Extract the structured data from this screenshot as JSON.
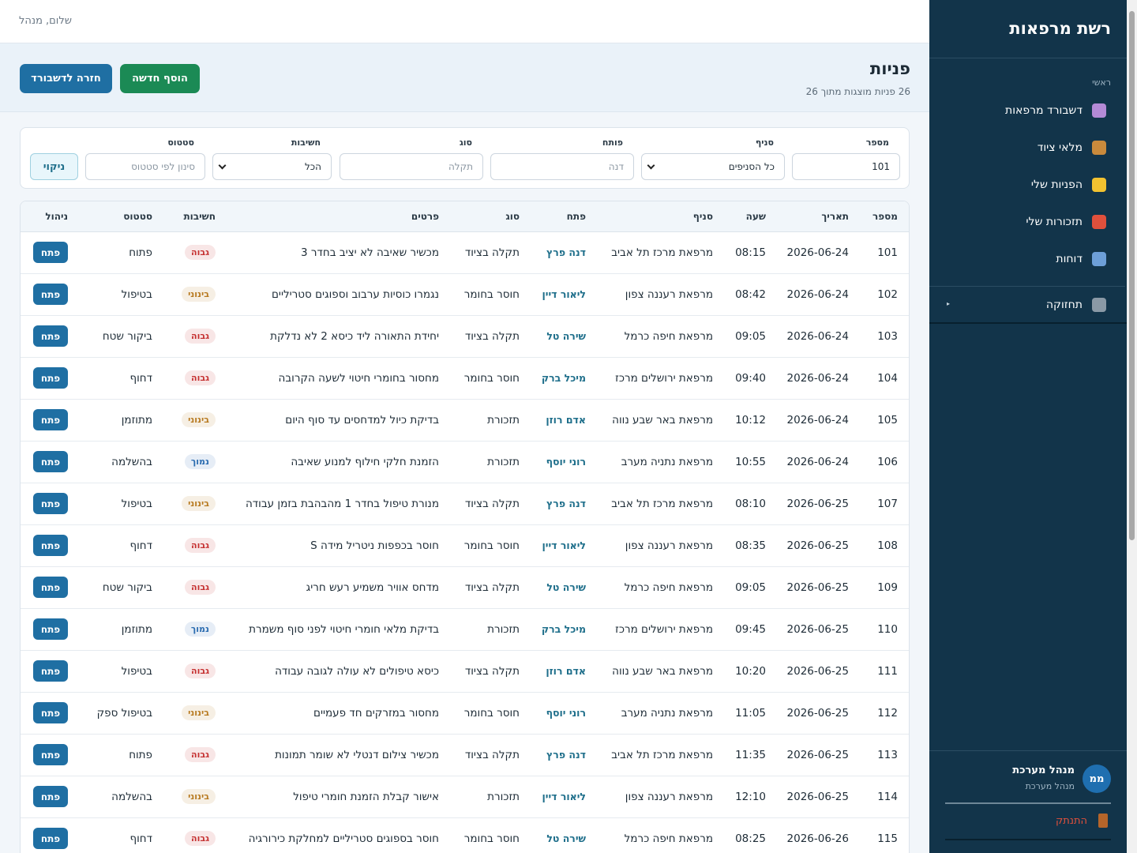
{
  "sidebar": {
    "title": "רשת מרפאות",
    "section": "ראשי",
    "nav": [
      "דשבורד מרפאות",
      "מלאי ציוד",
      "הפניות שלי",
      "תזכורות שלי",
      "דוחות"
    ],
    "nav_colors": [
      "#b48ad6",
      "#c98a3c",
      "#f2c230",
      "#e0503c",
      "#6d9fd8"
    ],
    "maintenance": "תחזוקה",
    "user": {
      "initials": "ממ",
      "name": "מנהל מערכת",
      "role": "מנהל מערכת"
    },
    "logout": "התנתק"
  },
  "topbar": {
    "greeting": "שלום, מנהל"
  },
  "header": {
    "title": "פניות",
    "subtitle": "26 פניות מוצגות מתוך 26",
    "buttons": [
      "הוסף חדשה",
      "חזרה לדשבורד"
    ]
  },
  "filters": {
    "fields": [
      {
        "label": "מספר",
        "value": "101"
      },
      {
        "label": "סניף",
        "value": "כל הסניפים",
        "kind": "select"
      },
      {
        "label": "פותח",
        "placeholder": "דנה"
      },
      {
        "label": "סוג",
        "placeholder": "תקלה"
      },
      {
        "label": "חשיבות",
        "value": "הכל",
        "kind": "select"
      },
      {
        "label": "סטטוס",
        "placeholder": "סינון לפי סטטוס"
      }
    ],
    "clear": "ניקוי"
  },
  "table": {
    "columns": [
      "מספר",
      "תאריך",
      "שעה",
      "סניף",
      "פתח",
      "סוג",
      "פרטים",
      "חשיבות",
      "סטטוס",
      "ניהול"
    ],
    "action": "פתח",
    "rows": [
      {
        "cells": [
          "101",
          "2026-06-24",
          "08:15",
          "מרפאת מרכז תל אביב",
          "דנה פרץ",
          "תקלה בציוד",
          "מכשיר שאיבה לא יציב בחדר 3",
          "גבוה",
          "פתוח"
        ],
        "priority_color": "#c53030"
      },
      {
        "cells": [
          "102",
          "2026-06-24",
          "08:42",
          "מרפאת רעננה צפון",
          "ליאור דיין",
          "חוסר בחומר",
          "נגמרו כוסיות ערבוב וספוגים סטריליים",
          "בינוני",
          "בטיפול"
        ],
        "priority_color": "#b7791f"
      },
      {
        "cells": [
          "103",
          "2026-06-24",
          "09:05",
          "מרפאת חיפה כרמל",
          "שירה טל",
          "תקלה בציוד",
          "יחידת התאורה ליד כיסא 2 לא נדלקת",
          "גבוה",
          "ביקור שטח"
        ],
        "priority_color": "#c53030"
      },
      {
        "cells": [
          "104",
          "2026-06-24",
          "09:40",
          "מרפאת ירושלים מרכז",
          "מיכל ברק",
          "חוסר בחומר",
          "מחסור בחומרי חיטוי לשעה הקרובה",
          "גבוה",
          "דחוף"
        ],
        "priority_color": "#c53030"
      },
      {
        "cells": [
          "105",
          "2026-06-24",
          "10:12",
          "מרפאת באר שבע נווה",
          "אדם רוזן",
          "תזכורת",
          "בדיקת כיול למדחסים עד סוף היום",
          "בינוני",
          "מתוזמן"
        ],
        "priority_color": "#b7791f"
      },
      {
        "cells": [
          "106",
          "2026-06-24",
          "10:55",
          "מרפאת נתניה מערב",
          "רוני יוסף",
          "תזכורת",
          "הזמנת חלקי חילוף למנוע שאיבה",
          "נמוך",
          "בהשלמה"
        ],
        "priority_color": "#2b6cb0"
      },
      {
        "cells": [
          "107",
          "2026-06-25",
          "08:10",
          "מרפאת מרכז תל אביב",
          "דנה פרץ",
          "תקלה בציוד",
          "מנורת טיפול בחדר 1 מהבהבת בזמן עבודה",
          "בינוני",
          "בטיפול"
        ],
        "priority_color": "#b7791f"
      },
      {
        "cells": [
          "108",
          "2026-06-25",
          "08:35",
          "מרפאת רעננה צפון",
          "ליאור דיין",
          "חוסר בחומר",
          "חוסר בכפפות ניטריל מידה S",
          "גבוה",
          "דחוף"
        ],
        "priority_color": "#c53030"
      },
      {
        "cells": [
          "109",
          "2026-06-25",
          "09:05",
          "מרפאת חיפה כרמל",
          "שירה טל",
          "תקלה בציוד",
          "מדחס אוויר משמיע רעש חריג",
          "גבוה",
          "ביקור שטח"
        ],
        "priority_color": "#c53030"
      },
      {
        "cells": [
          "110",
          "2026-06-25",
          "09:45",
          "מרפאת ירושלים מרכז",
          "מיכל ברק",
          "תזכורת",
          "בדיקת מלאי חומרי חיטוי לפני סוף משמרת",
          "נמוך",
          "מתוזמן"
        ],
        "priority_color": "#2b6cb0"
      },
      {
        "cells": [
          "111",
          "2026-06-25",
          "10:20",
          "מרפאת באר שבע נווה",
          "אדם רוזן",
          "תקלה בציוד",
          "כיסא טיפולים לא עולה לגובה עבודה",
          "גבוה",
          "בטיפול"
        ],
        "priority_color": "#c53030"
      },
      {
        "cells": [
          "112",
          "2026-06-25",
          "11:05",
          "מרפאת נתניה מערב",
          "רוני יוסף",
          "חוסר בחומר",
          "מחסור במזרקים חד פעמיים",
          "בינוני",
          "בטיפול ספק"
        ],
        "priority_color": "#b7791f"
      },
      {
        "cells": [
          "113",
          "2026-06-25",
          "11:35",
          "מרפאת מרכז תל אביב",
          "דנה פרץ",
          "תקלה בציוד",
          "מכשיר צילום דנטלי לא שומר תמונות",
          "גבוה",
          "פתוח"
        ],
        "priority_color": "#c53030"
      },
      {
        "cells": [
          "114",
          "2026-06-25",
          "12:10",
          "מרפאת רעננה צפון",
          "ליאור דיין",
          "תזכורת",
          "אישור קבלת הזמנת חומרי טיפול",
          "בינוני",
          "בהשלמה"
        ],
        "priority_color": "#b7791f"
      },
      {
        "cells": [
          "115",
          "2026-06-26",
          "08:25",
          "מרפאת חיפה כרמל",
          "שירה טל",
          "חוסר בחומר",
          "חוסר בספוגים סטריליים למחלקת כירורגיה",
          "גבוה",
          "דחוף"
        ],
        "priority_color": "#c53030"
      }
    ]
  }
}
